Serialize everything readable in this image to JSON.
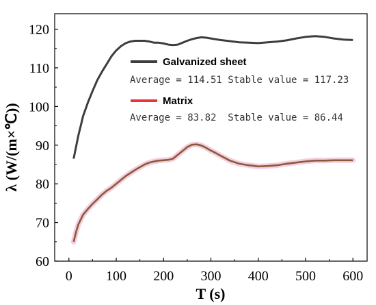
{
  "chart_data": {
    "type": "line",
    "xlabel": "T (s)",
    "ylabel": "λ (W/(m×℃))",
    "xlim": [
      -30,
      630
    ],
    "ylim": [
      60,
      124
    ],
    "xticks": [
      0,
      100,
      200,
      300,
      400,
      500,
      600
    ],
    "yticks": [
      60,
      70,
      80,
      90,
      100,
      110,
      120
    ],
    "grid": false,
    "legend_position": "upper-right, inside plot",
    "series": [
      {
        "name": "Galvanized sheet",
        "color": "#3d3d3d",
        "x": [
          10,
          15,
          20,
          25,
          30,
          40,
          50,
          60,
          70,
          80,
          90,
          100,
          110,
          120,
          130,
          140,
          150,
          160,
          170,
          180,
          190,
          200,
          210,
          220,
          230,
          240,
          250,
          260,
          270,
          280,
          290,
          300,
          320,
          340,
          360,
          380,
          400,
          420,
          440,
          460,
          480,
          500,
          520,
          540,
          560,
          580,
          600
        ],
        "y": [
          86.5,
          89.5,
          92.5,
          95.0,
          97.5,
          101.0,
          104.0,
          106.8,
          109.0,
          111.0,
          113.0,
          114.5,
          115.6,
          116.4,
          116.8,
          117.0,
          117.0,
          117.0,
          116.8,
          116.5,
          116.5,
          116.3,
          116.0,
          115.9,
          116.0,
          116.5,
          117.0,
          117.4,
          117.7,
          117.9,
          117.8,
          117.6,
          117.2,
          116.9,
          116.6,
          116.5,
          116.4,
          116.6,
          116.8,
          117.1,
          117.6,
          118.0,
          118.2,
          118.0,
          117.6,
          117.3,
          117.2
        ]
      },
      {
        "name": "Matrix",
        "color": "#e8353a",
        "x": [
          10,
          15,
          20,
          30,
          40,
          50,
          60,
          70,
          80,
          90,
          100,
          110,
          120,
          130,
          140,
          150,
          160,
          170,
          180,
          190,
          200,
          210,
          220,
          230,
          240,
          250,
          260,
          270,
          280,
          290,
          300,
          310,
          320,
          340,
          360,
          380,
          400,
          420,
          440,
          460,
          480,
          500,
          520,
          540,
          560,
          580,
          600
        ],
        "y": [
          65.0,
          67.5,
          69.5,
          72.0,
          73.5,
          74.8,
          76.0,
          77.2,
          78.2,
          79.0,
          80.0,
          81.0,
          82.0,
          82.8,
          83.6,
          84.3,
          85.0,
          85.5,
          85.8,
          86.0,
          86.1,
          86.2,
          86.5,
          87.5,
          88.5,
          89.5,
          90.1,
          90.2,
          89.9,
          89.3,
          88.6,
          88.0,
          87.3,
          86.0,
          85.2,
          84.8,
          84.5,
          84.6,
          84.8,
          85.2,
          85.5,
          85.8,
          86.0,
          86.0,
          86.1,
          86.1,
          86.1
        ]
      }
    ],
    "annotations": [
      "Average = 114.51 Stable value = 117.23",
      "Average = 83.82  Stable value = 86.44"
    ]
  }
}
